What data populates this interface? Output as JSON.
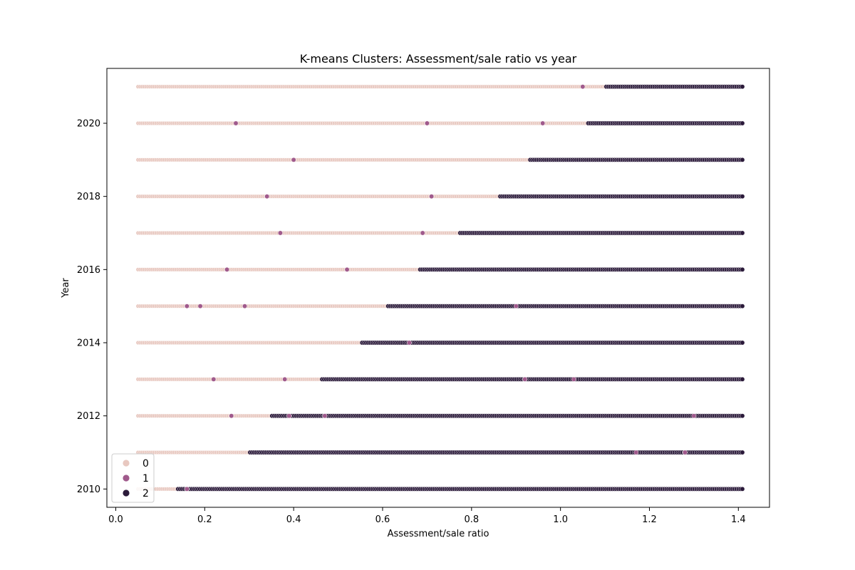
{
  "chart_data": {
    "type": "scatter",
    "title": "K-means Clusters: Assessment/sale ratio vs year",
    "xlabel": "Assessment/sale ratio",
    "ylabel": "Year",
    "xlim": [
      -0.02,
      1.47
    ],
    "ylim": [
      2009.5,
      2021.5
    ],
    "xticks": [
      0.0,
      0.2,
      0.4,
      0.6,
      0.8,
      1.0,
      1.2,
      1.4
    ],
    "xtick_labels": [
      "0.0",
      "0.2",
      "0.4",
      "0.6",
      "0.8",
      "1.0",
      "1.2",
      "1.4"
    ],
    "yticks": [
      2010,
      2012,
      2014,
      2016,
      2018,
      2020
    ],
    "ytick_labels": [
      "2010",
      "2012",
      "2014",
      "2016",
      "2018",
      "2020"
    ],
    "x_range": [
      0.05,
      1.41
    ],
    "grid": false,
    "legend": {
      "placement": "lower-left",
      "entries": [
        {
          "label": "0",
          "color": "#e8c8c0"
        },
        {
          "label": "1",
          "color": "#a05a8c"
        },
        {
          "label": "2",
          "color": "#2b1a3a"
        }
      ]
    },
    "cluster_boundaries": [
      {
        "year": 2010,
        "pink_to_dark": 0.14
      },
      {
        "year": 2011,
        "pink_to_dark": 0.3
      },
      {
        "year": 2012,
        "pink_to_dark": 0.35
      },
      {
        "year": 2013,
        "pink_to_dark": 0.46
      },
      {
        "year": 2014,
        "pink_to_dark": 0.55
      },
      {
        "year": 2015,
        "pink_to_dark": 0.61
      },
      {
        "year": 2016,
        "pink_to_dark": 0.68
      },
      {
        "year": 2017,
        "pink_to_dark": 0.77
      },
      {
        "year": 2018,
        "pink_to_dark": 0.86
      },
      {
        "year": 2019,
        "pink_to_dark": 0.93
      },
      {
        "year": 2020,
        "pink_to_dark": 1.06
      },
      {
        "year": 2021,
        "pink_to_dark": 1.1
      }
    ],
    "cluster1_points": [
      {
        "year": 2010,
        "x": 0.16
      },
      {
        "year": 2011,
        "x": 1.17
      },
      {
        "year": 2011,
        "x": 1.28
      },
      {
        "year": 2012,
        "x": 0.26
      },
      {
        "year": 2012,
        "x": 0.39
      },
      {
        "year": 2012,
        "x": 0.47
      },
      {
        "year": 2012,
        "x": 1.3
      },
      {
        "year": 2013,
        "x": 0.22
      },
      {
        "year": 2013,
        "x": 0.38
      },
      {
        "year": 2013,
        "x": 0.92
      },
      {
        "year": 2013,
        "x": 1.03
      },
      {
        "year": 2014,
        "x": 0.66
      },
      {
        "year": 2015,
        "x": 0.16
      },
      {
        "year": 2015,
        "x": 0.19
      },
      {
        "year": 2015,
        "x": 0.29
      },
      {
        "year": 2015,
        "x": 0.9
      },
      {
        "year": 2016,
        "x": 0.25
      },
      {
        "year": 2016,
        "x": 0.52
      },
      {
        "year": 2017,
        "x": 0.37
      },
      {
        "year": 2017,
        "x": 0.69
      },
      {
        "year": 2018,
        "x": 0.34
      },
      {
        "year": 2018,
        "x": 0.71
      },
      {
        "year": 2019,
        "x": 0.4
      },
      {
        "year": 2020,
        "x": 0.27
      },
      {
        "year": 2020,
        "x": 0.7
      },
      {
        "year": 2020,
        "x": 0.96
      },
      {
        "year": 2021,
        "x": 1.05
      }
    ]
  }
}
